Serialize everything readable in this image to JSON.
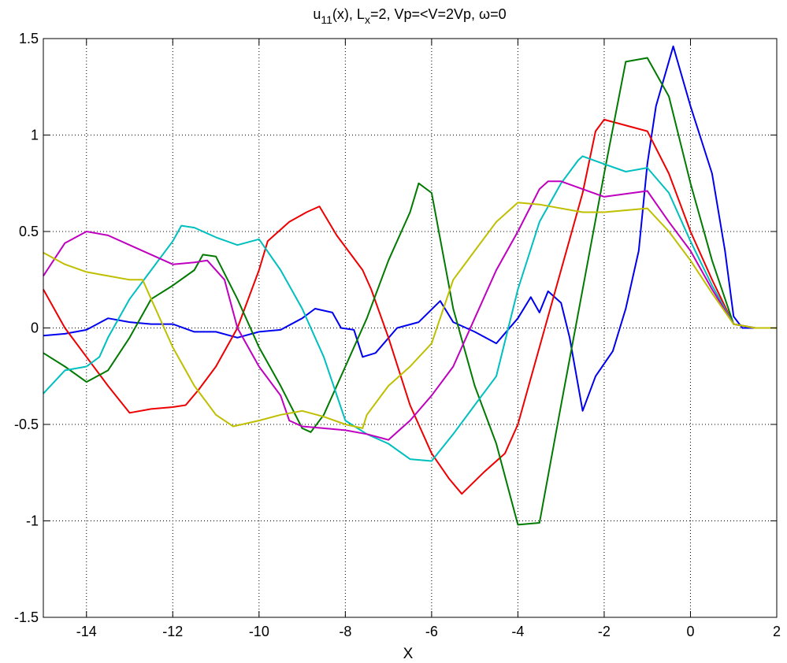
{
  "chart_data": {
    "type": "line",
    "title": {
      "main": "u",
      "sub1": "11",
      "mid": "(x), L",
      "sub2": "x",
      "rest": "=2,  Vp=<V=2Vp, ω=0"
    },
    "xlabel": "X",
    "ylabel": "",
    "xlim": [
      -15,
      2
    ],
    "ylim": [
      -1.5,
      1.5
    ],
    "xticks": [
      -14,
      -12,
      -10,
      -8,
      -6,
      -4,
      -2,
      0,
      2
    ],
    "yticks": [
      -1.5,
      -1,
      -0.5,
      0,
      0.5,
      1,
      1.5
    ],
    "xtick_labels": [
      "-14",
      "-12",
      "-10",
      "-8",
      "-6",
      "-4",
      "-2",
      "0",
      "2"
    ],
    "ytick_labels": [
      "-1.5",
      "-1",
      "-0.5",
      "0",
      "0.5",
      "1",
      "1.5"
    ],
    "grid": true,
    "legend": false,
    "series": [
      {
        "color": "#0000ee",
        "points": [
          [
            -15,
            -0.04
          ],
          [
            -14.5,
            -0.03
          ],
          [
            -14,
            -0.01
          ],
          [
            -13.5,
            0.05
          ],
          [
            -13,
            0.03
          ],
          [
            -12.5,
            0.02
          ],
          [
            -12,
            0.02
          ],
          [
            -11.5,
            -0.02
          ],
          [
            -11,
            -0.02
          ],
          [
            -10.5,
            -0.05
          ],
          [
            -10,
            -0.02
          ],
          [
            -9.5,
            -0.01
          ],
          [
            -9,
            0.05
          ],
          [
            -8.7,
            0.1
          ],
          [
            -8.3,
            0.08
          ],
          [
            -8.1,
            0.0
          ],
          [
            -7.8,
            -0.01
          ],
          [
            -7.6,
            -0.15
          ],
          [
            -7.3,
            -0.13
          ],
          [
            -6.8,
            0.0
          ],
          [
            -6.3,
            0.03
          ],
          [
            -5.8,
            0.14
          ],
          [
            -5.5,
            0.03
          ],
          [
            -5.0,
            -0.02
          ],
          [
            -4.5,
            -0.08
          ],
          [
            -4.0,
            0.05
          ],
          [
            -3.7,
            0.16
          ],
          [
            -3.5,
            0.08
          ],
          [
            -3.3,
            0.19
          ],
          [
            -3.0,
            0.13
          ],
          [
            -2.8,
            -0.05
          ],
          [
            -2.5,
            -0.43
          ],
          [
            -2.2,
            -0.25
          ],
          [
            -1.8,
            -0.12
          ],
          [
            -1.5,
            0.1
          ],
          [
            -1.2,
            0.4
          ],
          [
            -1.0,
            0.85
          ],
          [
            -0.8,
            1.15
          ],
          [
            -0.4,
            1.46
          ],
          [
            0,
            1.15
          ],
          [
            0.5,
            0.8
          ],
          [
            0.8,
            0.4
          ],
          [
            1.0,
            0.06
          ],
          [
            1.2,
            0.0
          ],
          [
            1.5,
            0.0
          ],
          [
            2,
            0.0
          ]
        ]
      },
      {
        "color": "#ee0000",
        "points": [
          [
            -15,
            0.2
          ],
          [
            -14.5,
            0.0
          ],
          [
            -14,
            -0.15
          ],
          [
            -13.5,
            -0.3
          ],
          [
            -13,
            -0.44
          ],
          [
            -12.5,
            -0.42
          ],
          [
            -12,
            -0.41
          ],
          [
            -11.7,
            -0.4
          ],
          [
            -11.4,
            -0.32
          ],
          [
            -11,
            -0.2
          ],
          [
            -10.5,
            0.0
          ],
          [
            -10,
            0.3
          ],
          [
            -9.8,
            0.45
          ],
          [
            -9.3,
            0.55
          ],
          [
            -8.9,
            0.6
          ],
          [
            -8.6,
            0.63
          ],
          [
            -8.2,
            0.48
          ],
          [
            -7.6,
            0.3
          ],
          [
            -7.4,
            0.2
          ],
          [
            -7.0,
            -0.05
          ],
          [
            -6.5,
            -0.4
          ],
          [
            -6.0,
            -0.65
          ],
          [
            -5.6,
            -0.78
          ],
          [
            -5.3,
            -0.86
          ],
          [
            -4.8,
            -0.75
          ],
          [
            -4.3,
            -0.65
          ],
          [
            -4.0,
            -0.5
          ],
          [
            -3.5,
            -0.1
          ],
          [
            -3.0,
            0.3
          ],
          [
            -2.5,
            0.7
          ],
          [
            -2.2,
            1.02
          ],
          [
            -2.0,
            1.08
          ],
          [
            -1.0,
            1.02
          ],
          [
            -0.5,
            0.8
          ],
          [
            0,
            0.5
          ],
          [
            0.5,
            0.25
          ],
          [
            1.0,
            0.02
          ],
          [
            1.5,
            0.0
          ],
          [
            2,
            0.0
          ]
        ]
      },
      {
        "color": "#007a00",
        "points": [
          [
            -15,
            -0.13
          ],
          [
            -14.5,
            -0.2
          ],
          [
            -14,
            -0.28
          ],
          [
            -13.5,
            -0.22
          ],
          [
            -13,
            -0.05
          ],
          [
            -12.5,
            0.15
          ],
          [
            -12,
            0.22
          ],
          [
            -11.5,
            0.3
          ],
          [
            -11.3,
            0.38
          ],
          [
            -11,
            0.37
          ],
          [
            -10.5,
            0.15
          ],
          [
            -10,
            -0.1
          ],
          [
            -9.5,
            -0.3
          ],
          [
            -9,
            -0.52
          ],
          [
            -8.8,
            -0.54
          ],
          [
            -8.5,
            -0.45
          ],
          [
            -8,
            -0.2
          ],
          [
            -7.5,
            0.05
          ],
          [
            -7,
            0.35
          ],
          [
            -6.5,
            0.6
          ],
          [
            -6.3,
            0.75
          ],
          [
            -6.0,
            0.7
          ],
          [
            -5.5,
            0.1
          ],
          [
            -5,
            -0.3
          ],
          [
            -4.5,
            -0.6
          ],
          [
            -4,
            -1.02
          ],
          [
            -3.5,
            -1.01
          ],
          [
            -3,
            -0.4
          ],
          [
            -2.5,
            0.2
          ],
          [
            -2,
            0.8
          ],
          [
            -1.5,
            1.38
          ],
          [
            -1.0,
            1.4
          ],
          [
            -0.5,
            1.2
          ],
          [
            0,
            0.75
          ],
          [
            0.5,
            0.35
          ],
          [
            1.0,
            0.02
          ],
          [
            1.5,
            0.0
          ],
          [
            2,
            0.0
          ]
        ]
      },
      {
        "color": "#00bfbf",
        "points": [
          [
            -15,
            -0.34
          ],
          [
            -14.5,
            -0.22
          ],
          [
            -14,
            -0.2
          ],
          [
            -13.7,
            -0.15
          ],
          [
            -13.5,
            -0.05
          ],
          [
            -13,
            0.15
          ],
          [
            -12.5,
            0.3
          ],
          [
            -12,
            0.45
          ],
          [
            -11.8,
            0.53
          ],
          [
            -11.5,
            0.52
          ],
          [
            -11,
            0.47
          ],
          [
            -10.5,
            0.43
          ],
          [
            -10.0,
            0.46
          ],
          [
            -9.5,
            0.3
          ],
          [
            -9,
            0.1
          ],
          [
            -8.5,
            -0.15
          ],
          [
            -8,
            -0.48
          ],
          [
            -7.5,
            -0.55
          ],
          [
            -7,
            -0.6
          ],
          [
            -6.5,
            -0.68
          ],
          [
            -6.0,
            -0.69
          ],
          [
            -5.5,
            -0.55
          ],
          [
            -5,
            -0.4
          ],
          [
            -4.5,
            -0.25
          ],
          [
            -4,
            0.2
          ],
          [
            -3.5,
            0.55
          ],
          [
            -3,
            0.75
          ],
          [
            -2.6,
            0.87
          ],
          [
            -2.5,
            0.89
          ],
          [
            -2,
            0.85
          ],
          [
            -1.5,
            0.81
          ],
          [
            -1.0,
            0.83
          ],
          [
            -0.5,
            0.7
          ],
          [
            0,
            0.45
          ],
          [
            0.5,
            0.22
          ],
          [
            1.0,
            0.02
          ],
          [
            1.5,
            0.0
          ],
          [
            2,
            0.0
          ]
        ]
      },
      {
        "color": "#bf00bf",
        "points": [
          [
            -15,
            0.27
          ],
          [
            -14.5,
            0.44
          ],
          [
            -14,
            0.5
          ],
          [
            -13.5,
            0.48
          ],
          [
            -13,
            0.43
          ],
          [
            -12.5,
            0.38
          ],
          [
            -12,
            0.33
          ],
          [
            -11.5,
            0.34
          ],
          [
            -11.2,
            0.35
          ],
          [
            -10.8,
            0.25
          ],
          [
            -10.5,
            0.0
          ],
          [
            -10,
            -0.2
          ],
          [
            -9.5,
            -0.35
          ],
          [
            -9.3,
            -0.48
          ],
          [
            -9.0,
            -0.51
          ],
          [
            -8.5,
            -0.52
          ],
          [
            -8,
            -0.53
          ],
          [
            -7.5,
            -0.55
          ],
          [
            -7,
            -0.58
          ],
          [
            -6.5,
            -0.48
          ],
          [
            -6,
            -0.35
          ],
          [
            -5.5,
            -0.2
          ],
          [
            -5,
            0.05
          ],
          [
            -4.5,
            0.3
          ],
          [
            -4,
            0.5
          ],
          [
            -3.5,
            0.72
          ],
          [
            -3.3,
            0.76
          ],
          [
            -3.0,
            0.76
          ],
          [
            -2,
            0.68
          ],
          [
            -1.0,
            0.71
          ],
          [
            -0.5,
            0.55
          ],
          [
            0,
            0.4
          ],
          [
            0.5,
            0.2
          ],
          [
            1.0,
            0.02
          ],
          [
            1.5,
            0.0
          ],
          [
            2,
            0.0
          ]
        ]
      },
      {
        "color": "#bfbf00",
        "points": [
          [
            -15,
            0.39
          ],
          [
            -14.5,
            0.33
          ],
          [
            -14,
            0.29
          ],
          [
            -13.5,
            0.27
          ],
          [
            -13,
            0.25
          ],
          [
            -12.7,
            0.25
          ],
          [
            -12.5,
            0.15
          ],
          [
            -12,
            -0.1
          ],
          [
            -11.5,
            -0.3
          ],
          [
            -11,
            -0.45
          ],
          [
            -10.6,
            -0.51
          ],
          [
            -10,
            -0.48
          ],
          [
            -9.5,
            -0.45
          ],
          [
            -9.0,
            -0.43
          ],
          [
            -8.5,
            -0.46
          ],
          [
            -8,
            -0.5
          ],
          [
            -7.6,
            -0.52
          ],
          [
            -7.5,
            -0.45
          ],
          [
            -7,
            -0.3
          ],
          [
            -6.5,
            -0.2
          ],
          [
            -6.0,
            -0.08
          ],
          [
            -5.5,
            0.25
          ],
          [
            -5,
            0.4
          ],
          [
            -4.5,
            0.55
          ],
          [
            -4.0,
            0.65
          ],
          [
            -3.5,
            0.64
          ],
          [
            -2.5,
            0.6
          ],
          [
            -2,
            0.6
          ],
          [
            -1.0,
            0.62
          ],
          [
            -0.5,
            0.5
          ],
          [
            0,
            0.35
          ],
          [
            0.5,
            0.18
          ],
          [
            1.0,
            0.02
          ],
          [
            1.5,
            0.0
          ],
          [
            2,
            0.0
          ]
        ]
      }
    ]
  }
}
